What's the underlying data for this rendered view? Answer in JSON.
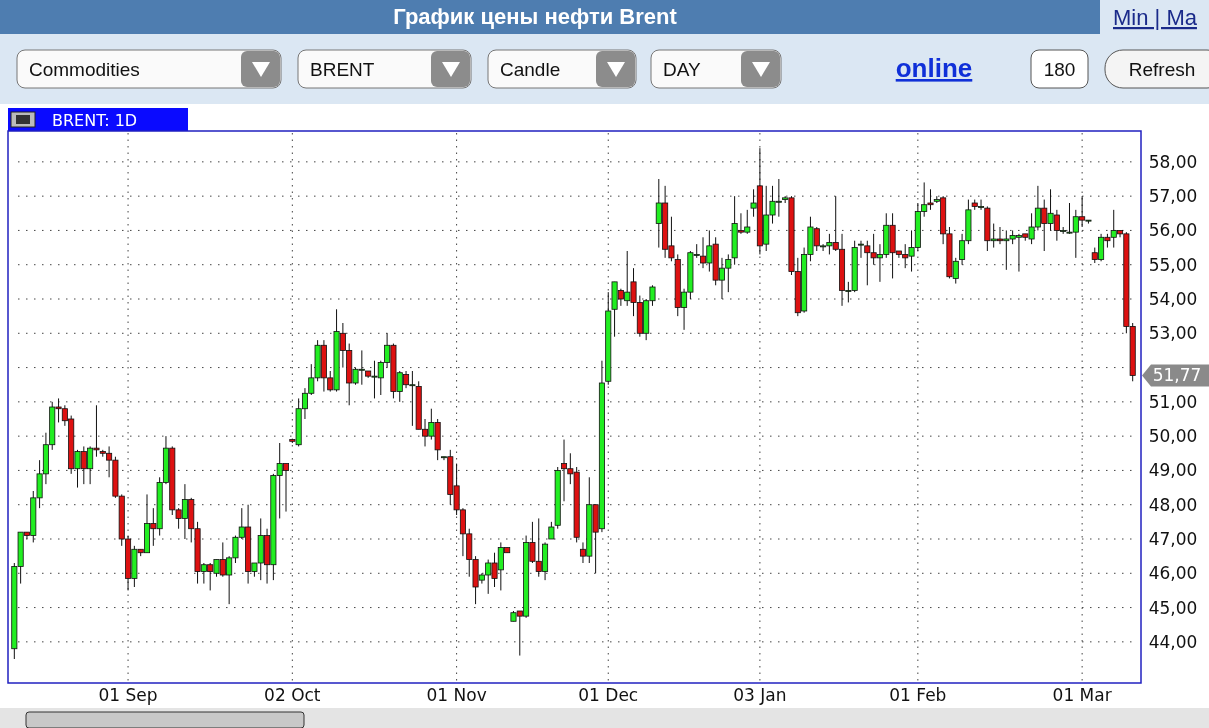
{
  "chart_data": {
    "type": "candlestick",
    "title": "График цены нефти Brent",
    "annotations": [
      "Min | Ma",
      "Commodities",
      "BRENT",
      "Candle",
      "DAY",
      "online",
      "180",
      "Refresh",
      "BRENT: 1D",
      "51,77"
    ],
    "categories": [
      null,
      null,
      null,
      null,
      null,
      null,
      null,
      null,
      null,
      null,
      null,
      null,
      null,
      null,
      null,
      null,
      null,
      null,
      "01 Sep",
      null,
      null,
      null,
      null,
      null,
      null,
      null,
      null,
      null,
      null,
      null,
      null,
      null,
      null,
      null,
      null,
      null,
      null,
      null,
      null,
      null,
      null,
      null,
      null,
      null,
      "02 Oct",
      null,
      null,
      null,
      null,
      null,
      null,
      null,
      null,
      null,
      null,
      null,
      null,
      null,
      null,
      null,
      null,
      null,
      null,
      null,
      null,
      null,
      null,
      null,
      null,
      null,
      "01 Nov",
      null,
      null,
      null,
      null,
      null,
      null,
      null,
      null,
      null,
      null,
      null,
      null,
      null,
      null,
      null,
      null,
      null,
      null,
      null,
      null,
      null,
      null,
      null,
      "01 Dec",
      null,
      null,
      null,
      null,
      null,
      null,
      null,
      null,
      null,
      null,
      null,
      null,
      null,
      null,
      null,
      null,
      null,
      null,
      null,
      null,
      null,
      null,
      null,
      "03 Jan",
      null,
      null,
      null,
      null,
      null,
      null,
      null,
      null,
      null,
      null,
      null,
      null,
      null,
      null,
      null,
      null,
      null,
      null,
      null,
      null,
      null,
      null,
      null,
      null,
      "01 Feb",
      null,
      null,
      null,
      null,
      null,
      null,
      null,
      null,
      null,
      null,
      null,
      null,
      null,
      null,
      null,
      null,
      null,
      null,
      null,
      null,
      null,
      null,
      null,
      null,
      null,
      "01 Mar",
      null,
      null,
      null,
      null,
      null,
      null,
      null,
      null
    ],
    "ohlc": [
      [
        43.8,
        46.3,
        43.5,
        46.2
      ],
      [
        46.2,
        47.2,
        45.7,
        47.2
      ],
      [
        47.2,
        47.2,
        47.0,
        47.1
      ],
      [
        47.1,
        48.4,
        46.9,
        48.2
      ],
      [
        48.2,
        49.3,
        47.9,
        48.9
      ],
      [
        48.9,
        50.1,
        48.6,
        49.75
      ],
      [
        49.75,
        51.0,
        49.6,
        50.85
      ],
      [
        50.85,
        51.1,
        50.4,
        50.8
      ],
      [
        50.8,
        50.9,
        50.3,
        50.45
      ],
      [
        50.5,
        50.6,
        48.9,
        49.05
      ],
      [
        49.05,
        49.6,
        48.5,
        49.55
      ],
      [
        49.55,
        49.7,
        48.6,
        49.05
      ],
      [
        49.05,
        49.7,
        48.6,
        49.65
      ],
      [
        49.65,
        50.9,
        49.4,
        49.6
      ],
      [
        49.55,
        49.6,
        49.4,
        49.5
      ],
      [
        49.5,
        49.7,
        48.8,
        49.3
      ],
      [
        49.3,
        49.4,
        48.2,
        48.25
      ],
      [
        48.25,
        48.3,
        46.8,
        47.0
      ],
      [
        47.0,
        47.1,
        45.5,
        45.85
      ],
      [
        45.85,
        46.8,
        45.6,
        46.7
      ],
      [
        46.7,
        46.7,
        46.5,
        46.6
      ],
      [
        46.6,
        48.3,
        46.6,
        47.45
      ],
      [
        47.45,
        47.9,
        46.8,
        47.3
      ],
      [
        47.3,
        48.8,
        47.1,
        48.65
      ],
      [
        48.65,
        50.0,
        48.6,
        49.65
      ],
      [
        49.65,
        49.7,
        47.7,
        47.85
      ],
      [
        47.85,
        47.9,
        47.3,
        47.6
      ],
      [
        47.6,
        48.6,
        47.0,
        48.15
      ],
      [
        48.15,
        48.2,
        46.9,
        47.3
      ],
      [
        47.3,
        47.5,
        45.7,
        46.05
      ],
      [
        46.05,
        46.3,
        45.7,
        46.25
      ],
      [
        46.25,
        46.3,
        45.5,
        46.05
      ],
      [
        46.0,
        46.4,
        45.9,
        46.4
      ],
      [
        46.4,
        46.9,
        45.9,
        45.95
      ],
      [
        45.95,
        46.5,
        45.1,
        46.45
      ],
      [
        46.45,
        47.1,
        46.3,
        47.05
      ],
      [
        47.05,
        47.9,
        47.0,
        47.35
      ],
      [
        47.35,
        48.0,
        45.7,
        46.05
      ],
      [
        46.05,
        46.3,
        45.9,
        46.3
      ],
      [
        46.3,
        47.6,
        45.8,
        47.1
      ],
      [
        47.1,
        47.3,
        45.7,
        46.25
      ],
      [
        46.25,
        48.9,
        45.8,
        48.85
      ],
      [
        48.85,
        49.8,
        47.6,
        49.2
      ],
      [
        49.2,
        49.2,
        47.8,
        49.0
      ],
      [
        49.9,
        49.9,
        49.8,
        49.85
      ],
      [
        49.75,
        51.1,
        49.7,
        50.8
      ],
      [
        50.8,
        51.4,
        50.5,
        51.25
      ],
      [
        51.25,
        52.1,
        51.2,
        51.7
      ],
      [
        51.7,
        52.8,
        51.6,
        52.65
      ],
      [
        52.65,
        52.8,
        51.3,
        51.7
      ],
      [
        51.7,
        51.9,
        51.3,
        51.35
      ],
      [
        51.35,
        53.7,
        51.3,
        53.05
      ],
      [
        53.0,
        53.3,
        52.0,
        52.5
      ],
      [
        52.5,
        52.7,
        50.9,
        51.55
      ],
      [
        51.55,
        52.0,
        51.5,
        51.95
      ],
      [
        51.95,
        52.5,
        51.5,
        51.95
      ],
      [
        51.9,
        51.9,
        51.7,
        51.75
      ],
      [
        51.75,
        52.2,
        51.1,
        51.75
      ],
      [
        51.7,
        52.2,
        51.2,
        52.15
      ],
      [
        52.15,
        53.0,
        52.0,
        52.65
      ],
      [
        52.65,
        52.7,
        51.1,
        51.3
      ],
      [
        51.3,
        51.9,
        51.0,
        51.85
      ],
      [
        51.8,
        51.9,
        51.4,
        51.5
      ],
      [
        51.5,
        51.9,
        50.3,
        51.5
      ],
      [
        51.45,
        51.6,
        50.2,
        50.2
      ],
      [
        50.2,
        50.5,
        49.7,
        50.0
      ],
      [
        50.0,
        50.8,
        49.9,
        50.4
      ],
      [
        50.4,
        50.5,
        49.3,
        49.6
      ],
      [
        49.4,
        49.4,
        49.3,
        49.4
      ],
      [
        49.4,
        49.6,
        48.0,
        48.3
      ],
      [
        48.55,
        49.2,
        47.7,
        47.85
      ],
      [
        47.85,
        47.9,
        46.5,
        47.15
      ],
      [
        47.15,
        47.3,
        45.9,
        46.4
      ],
      [
        46.4,
        46.5,
        45.1,
        45.6
      ],
      [
        45.8,
        46.0,
        45.7,
        45.95
      ],
      [
        45.95,
        46.4,
        45.4,
        46.3
      ],
      [
        46.3,
        46.6,
        45.6,
        45.85
      ],
      [
        46.1,
        46.9,
        45.5,
        46.75
      ],
      [
        46.75,
        46.75,
        46.6,
        46.6
      ],
      [
        44.6,
        44.9,
        44.6,
        44.85
      ],
      [
        44.9,
        44.9,
        43.6,
        44.75
      ],
      [
        44.75,
        47.1,
        44.7,
        46.9
      ],
      [
        46.9,
        47.5,
        46.3,
        46.35
      ],
      [
        46.35,
        47.6,
        45.9,
        46.05
      ],
      [
        46.05,
        46.9,
        45.8,
        46.85
      ],
      [
        47.0,
        47.5,
        47.0,
        47.35
      ],
      [
        47.4,
        49.1,
        47.3,
        49.0
      ],
      [
        49.2,
        49.9,
        48.1,
        49.05
      ],
      [
        49.05,
        49.5,
        48.6,
        48.9
      ],
      [
        48.95,
        49.1,
        46.9,
        47.05
      ],
      [
        46.7,
        46.9,
        46.3,
        46.5
      ],
      [
        46.5,
        48.8,
        46.3,
        48.0
      ],
      [
        48.0,
        48.0,
        46.0,
        47.2
      ],
      [
        47.3,
        52.2,
        47.2,
        51.55
      ],
      [
        51.6,
        54.2,
        51.5,
        53.65
      ],
      [
        53.7,
        54.5,
        52.9,
        54.5
      ],
      [
        54.25,
        54.3,
        53.8,
        54.0
      ],
      [
        53.95,
        55.4,
        53.8,
        54.2
      ],
      [
        54.5,
        54.9,
        53.5,
        53.9
      ],
      [
        53.9,
        54.1,
        52.9,
        53.0
      ],
      [
        53.0,
        54.0,
        52.8,
        53.95
      ],
      [
        53.95,
        54.4,
        53.8,
        54.35
      ],
      [
        56.2,
        57.5,
        55.5,
        56.8
      ],
      [
        56.8,
        57.3,
        55.2,
        55.45
      ],
      [
        55.55,
        56.4,
        55.1,
        55.2
      ],
      [
        55.15,
        55.3,
        53.5,
        53.75
      ],
      [
        53.75,
        54.3,
        53.1,
        54.2
      ],
      [
        54.2,
        55.4,
        54.0,
        55.35
      ],
      [
        55.3,
        55.6,
        55.2,
        55.3
      ],
      [
        55.25,
        55.8,
        54.9,
        55.05
      ],
      [
        55.05,
        56.0,
        54.8,
        55.55
      ],
      [
        55.6,
        55.8,
        54.4,
        54.55
      ],
      [
        54.55,
        55.2,
        54.0,
        54.9
      ],
      [
        54.9,
        55.3,
        54.2,
        55.15
      ],
      [
        55.2,
        57.0,
        55.0,
        56.2
      ],
      [
        56.0,
        56.5,
        55.9,
        55.95
      ],
      [
        55.95,
        56.6,
        55.9,
        56.1
      ],
      [
        56.65,
        57.2,
        56.4,
        56.8
      ],
      [
        57.3,
        58.4,
        55.3,
        55.55
      ],
      [
        55.6,
        57.3,
        55.4,
        56.45
      ],
      [
        56.45,
        57.3,
        56.2,
        56.85
      ],
      [
        56.85,
        57.5,
        56.4,
        56.85
      ],
      [
        56.9,
        57.0,
        56.8,
        56.95
      ],
      [
        56.95,
        57.0,
        54.7,
        54.8
      ],
      [
        54.8,
        55.2,
        53.5,
        53.6
      ],
      [
        53.65,
        55.5,
        53.6,
        55.3
      ],
      [
        55.3,
        56.4,
        55.1,
        56.1
      ],
      [
        56.05,
        56.1,
        55.4,
        55.55
      ],
      [
        55.55,
        55.6,
        55.4,
        55.55
      ],
      [
        55.55,
        55.9,
        55.3,
        55.65
      ],
      [
        55.65,
        57.0,
        55.4,
        55.45
      ],
      [
        55.45,
        55.9,
        53.8,
        54.25
      ],
      [
        54.25,
        54.5,
        53.9,
        54.25
      ],
      [
        54.25,
        55.7,
        54.2,
        55.5
      ],
      [
        55.6,
        55.7,
        55.2,
        55.6
      ],
      [
        55.55,
        55.7,
        54.4,
        55.35
      ],
      [
        55.35,
        55.9,
        55.0,
        55.2
      ],
      [
        55.2,
        55.6,
        54.5,
        55.3
      ],
      [
        55.3,
        56.5,
        55.2,
        56.15
      ],
      [
        56.15,
        56.5,
        54.6,
        55.35
      ],
      [
        55.4,
        55.4,
        55.2,
        55.3
      ],
      [
        55.3,
        55.6,
        54.9,
        55.2
      ],
      [
        55.25,
        56.0,
        54.8,
        55.5
      ],
      [
        55.5,
        56.8,
        55.4,
        56.55
      ],
      [
        56.55,
        57.4,
        56.4,
        56.75
      ],
      [
        56.8,
        57.2,
        56.6,
        56.75
      ],
      [
        56.85,
        57.0,
        56.8,
        56.9
      ],
      [
        56.95,
        57.0,
        55.6,
        55.9
      ],
      [
        55.9,
        56.1,
        54.6,
        54.65
      ],
      [
        54.6,
        55.2,
        54.45,
        55.1
      ],
      [
        55.15,
        55.9,
        55.0,
        55.7
      ],
      [
        55.7,
        56.9,
        55.6,
        56.6
      ],
      [
        56.8,
        56.9,
        56.6,
        56.7
      ],
      [
        56.7,
        56.9,
        56.6,
        56.7
      ],
      [
        56.65,
        56.7,
        55.4,
        55.7
      ],
      [
        55.7,
        56.2,
        55.5,
        55.75
      ],
      [
        55.75,
        56.1,
        55.6,
        55.7
      ],
      [
        55.7,
        56.0,
        54.85,
        55.75
      ],
      [
        55.75,
        56.0,
        55.6,
        55.85
      ],
      [
        55.8,
        55.9,
        54.8,
        55.85
      ],
      [
        55.9,
        55.9,
        55.7,
        55.8
      ],
      [
        55.75,
        56.5,
        55.6,
        56.1
      ],
      [
        56.1,
        57.3,
        56.0,
        56.65
      ],
      [
        56.65,
        56.9,
        55.4,
        56.2
      ],
      [
        56.2,
        57.2,
        56.0,
        56.5
      ],
      [
        56.45,
        56.6,
        55.7,
        56.0
      ],
      [
        56.0,
        56.1,
        55.9,
        56.0
      ],
      [
        55.95,
        56.8,
        55.9,
        55.95
      ],
      [
        55.95,
        56.6,
        55.2,
        56.4
      ],
      [
        56.4,
        57.0,
        56.1,
        56.3
      ],
      [
        56.3,
        56.3,
        56.2,
        56.3
      ],
      [
        55.35,
        55.5,
        55.05,
        55.15
      ],
      [
        55.15,
        55.9,
        55.1,
        55.8
      ],
      [
        55.8,
        55.9,
        55.5,
        55.7
      ],
      [
        55.8,
        56.6,
        55.5,
        56.0
      ],
      [
        56.0,
        56.0,
        55.8,
        55.9
      ],
      [
        55.9,
        55.95,
        53.0,
        53.2
      ],
      [
        53.2,
        53.3,
        51.6,
        51.77
      ]
    ],
    "ylim": [
      42.8,
      58.9
    ],
    "yticks": [
      {
        "value": 44,
        "label": "44,00"
      },
      {
        "value": 45,
        "label": "45,00"
      },
      {
        "value": 46,
        "label": "46,00"
      },
      {
        "value": 47,
        "label": "47,00"
      },
      {
        "value": 48,
        "label": "48,00"
      },
      {
        "value": 49,
        "label": "49,00"
      },
      {
        "value": 50,
        "label": "50,00"
      },
      {
        "value": 51,
        "label": "51,00"
      },
      {
        "value": 52,
        "label": null
      },
      {
        "value": 53,
        "label": "53,00"
      },
      {
        "value": 54,
        "label": "54,00"
      },
      {
        "value": 55,
        "label": "55,00"
      },
      {
        "value": 56,
        "label": "56,00"
      },
      {
        "value": 57,
        "label": "57,00"
      },
      {
        "value": 58,
        "label": "58,00"
      }
    ],
    "grid": true
  }
}
